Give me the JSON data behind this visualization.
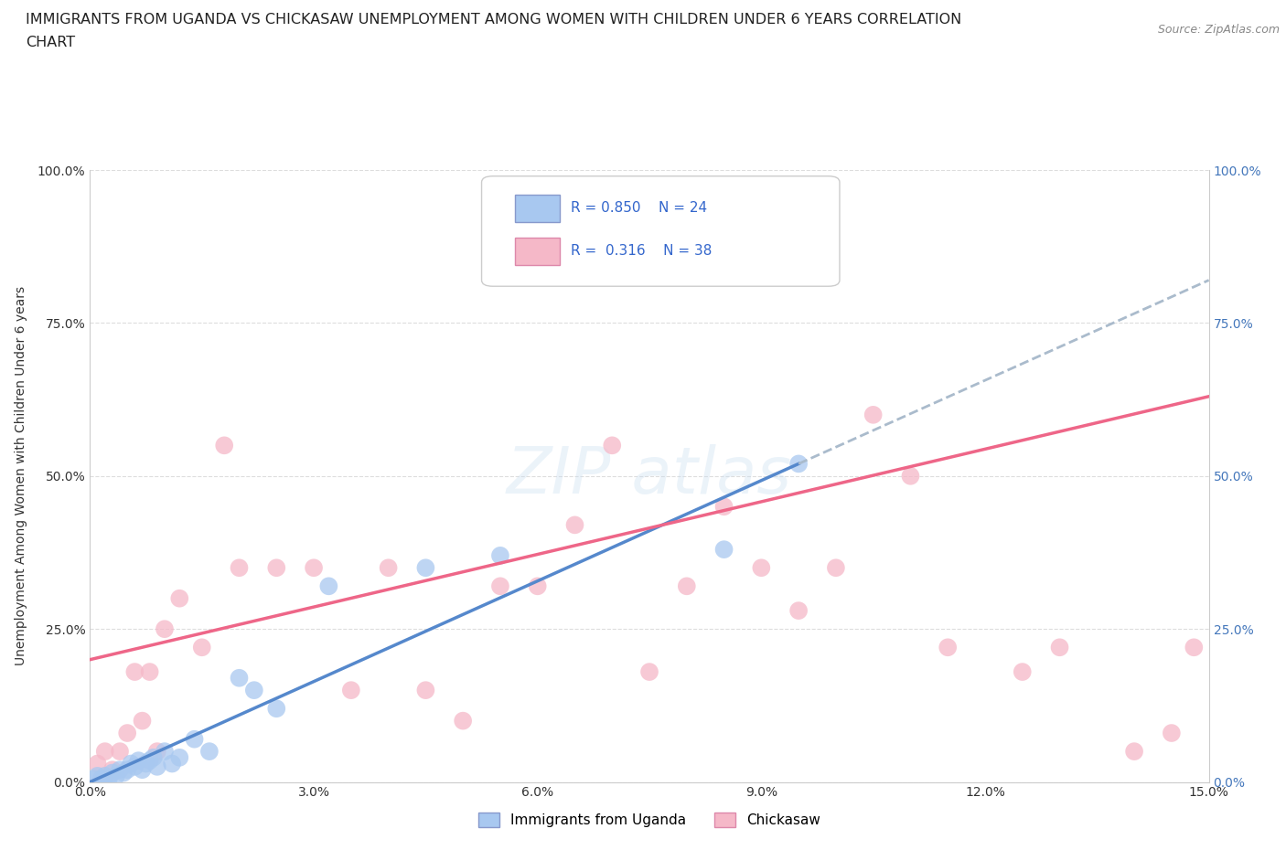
{
  "title_line1": "IMMIGRANTS FROM UGANDA VS CHICKASAW UNEMPLOYMENT AMONG WOMEN WITH CHILDREN UNDER 6 YEARS CORRELATION",
  "title_line2": "CHART",
  "source_text": "Source: ZipAtlas.com",
  "ylabel": "Unemployment Among Women with Children Under 6 years",
  "x_tick_vals": [
    0.0,
    3.0,
    6.0,
    9.0,
    12.0,
    15.0
  ],
  "y_tick_vals": [
    0.0,
    25.0,
    50.0,
    75.0,
    100.0
  ],
  "xlim": [
    0.0,
    15.0
  ],
  "ylim": [
    0.0,
    100.0
  ],
  "color_blue": "#a8c8f0",
  "color_pink": "#f5b8c8",
  "color_blue_line": "#5588cc",
  "color_pink_line": "#ee6688",
  "color_dashed": "#aabbcc",
  "legend_label1": "Immigrants from Uganda",
  "legend_label2": "Chickasaw",
  "background_color": "#ffffff",
  "grid_color": "#dddddd",
  "title_fontsize": 11.5,
  "axis_fontsize": 10,
  "tick_fontsize": 10,
  "watermark_color": "#c8ddf0",
  "watermark_alpha": 0.35,
  "blue_x": [
    0.05,
    0.1,
    0.15,
    0.2,
    0.25,
    0.3,
    0.35,
    0.4,
    0.45,
    0.5,
    0.55,
    0.6,
    0.65,
    0.7,
    0.75,
    0.8,
    0.85,
    0.9,
    1.0,
    1.1,
    1.2,
    1.4,
    1.6,
    2.0,
    2.2,
    2.5,
    3.2,
    4.5,
    5.5,
    8.5,
    9.5
  ],
  "blue_y": [
    0.5,
    1.0,
    0.5,
    1.0,
    0.5,
    1.5,
    1.0,
    2.0,
    1.5,
    2.0,
    3.0,
    2.5,
    3.5,
    2.0,
    3.0,
    3.5,
    4.0,
    2.5,
    5.0,
    3.0,
    4.0,
    7.0,
    5.0,
    17.0,
    15.0,
    12.0,
    32.0,
    35.0,
    37.0,
    38.0,
    52.0
  ],
  "pink_x": [
    0.1,
    0.2,
    0.3,
    0.4,
    0.5,
    0.6,
    0.7,
    0.8,
    0.9,
    1.0,
    1.2,
    1.5,
    1.8,
    2.0,
    2.5,
    3.0,
    3.5,
    4.0,
    4.5,
    5.0,
    5.5,
    6.0,
    6.5,
    7.0,
    7.5,
    8.0,
    8.5,
    9.0,
    9.5,
    10.0,
    10.5,
    11.0,
    11.5,
    12.5,
    13.0,
    14.0,
    14.5,
    14.8
  ],
  "pink_y": [
    3.0,
    5.0,
    2.0,
    5.0,
    8.0,
    18.0,
    10.0,
    18.0,
    5.0,
    25.0,
    30.0,
    22.0,
    55.0,
    35.0,
    35.0,
    35.0,
    15.0,
    35.0,
    15.0,
    10.0,
    32.0,
    32.0,
    42.0,
    55.0,
    18.0,
    32.0,
    45.0,
    35.0,
    28.0,
    35.0,
    60.0,
    50.0,
    22.0,
    18.0,
    22.0,
    5.0,
    8.0,
    22.0
  ],
  "blue_line_x0": 0.0,
  "blue_line_y0": 0.0,
  "blue_line_x1": 9.5,
  "blue_line_y1": 52.0,
  "pink_line_x0": 0.0,
  "pink_line_y0": 20.0,
  "pink_line_x1": 15.0,
  "pink_line_y1": 63.0,
  "dashed_line_x0": 9.5,
  "dashed_line_y0": 52.0,
  "dashed_line_x1": 15.0,
  "dashed_line_y1": 82.0
}
